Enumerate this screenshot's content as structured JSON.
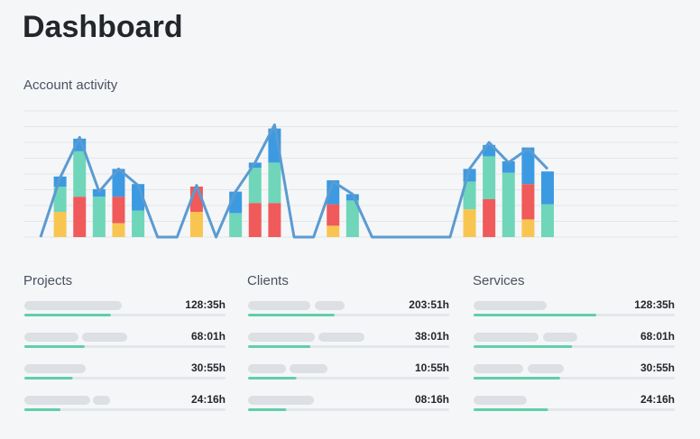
{
  "header": {
    "title": "Dashboard"
  },
  "chart_data": {
    "type": "bar",
    "title": "Account activity",
    "stacked": true,
    "grid": true,
    "categories": [
      null,
      null,
      null,
      null,
      null,
      null,
      null,
      null,
      null,
      null,
      null,
      null,
      null,
      null,
      null,
      null,
      null,
      null,
      null,
      null,
      null,
      null,
      null,
      null,
      null,
      null,
      null
    ],
    "ylim": [
      0,
      100
    ],
    "series": [
      {
        "color": "#f8c650",
        "values": [
          null,
          20,
          null,
          null,
          11,
          null,
          null,
          null,
          20,
          null,
          null,
          null,
          null,
          null,
          null,
          9,
          null,
          null,
          null,
          null,
          null,
          null,
          22,
          null,
          null,
          14,
          null
        ]
      },
      {
        "color": "#f05a5a",
        "values": [
          null,
          null,
          32,
          null,
          21,
          null,
          null,
          null,
          20,
          null,
          null,
          27,
          27,
          null,
          null,
          17,
          null,
          null,
          null,
          null,
          null,
          null,
          null,
          30,
          null,
          28,
          null
        ]
      },
      {
        "color": "#6fd6b9",
        "values": [
          null,
          20,
          36,
          32,
          null,
          21,
          null,
          null,
          null,
          null,
          19,
          28,
          32,
          null,
          null,
          null,
          29,
          null,
          null,
          null,
          null,
          null,
          22,
          34,
          51,
          null,
          26
        ]
      },
      {
        "color": "#3b9ae1",
        "values": [
          null,
          8,
          10,
          6,
          22,
          21,
          null,
          null,
          null,
          null,
          17,
          4,
          27,
          null,
          null,
          19,
          5,
          null,
          null,
          null,
          null,
          null,
          10,
          9,
          9,
          29,
          26
        ]
      },
      {
        "type": "line",
        "color": "#5b9bd1",
        "values": [
          0,
          47,
          79,
          36,
          54,
          41,
          0,
          0,
          41,
          0,
          36,
          59,
          89,
          0,
          0,
          44,
          34,
          0,
          0,
          0,
          0,
          0,
          54,
          75,
          59,
          70,
          54
        ]
      }
    ]
  },
  "panels": [
    {
      "title": "Projects",
      "rows": [
        {
          "value": "128:35h",
          "progress": 43
        },
        {
          "value": "68:01h",
          "progress": 30
        },
        {
          "value": "30:55h",
          "progress": 24
        },
        {
          "value": "24:16h",
          "progress": 18
        }
      ]
    },
    {
      "title": "Clients",
      "rows": [
        {
          "value": "203:51h",
          "progress": 43
        },
        {
          "value": "38:01h",
          "progress": 31
        },
        {
          "value": "10:55h",
          "progress": 24
        },
        {
          "value": "08:16h",
          "progress": 19
        }
      ]
    },
    {
      "title": "Services",
      "rows": [
        {
          "value": "128:35h",
          "progress": 61
        },
        {
          "value": "68:01h",
          "progress": 49
        },
        {
          "value": "30:55h",
          "progress": 43
        },
        {
          "value": "24:16h",
          "progress": 37
        }
      ]
    }
  ],
  "progress_max": 100
}
